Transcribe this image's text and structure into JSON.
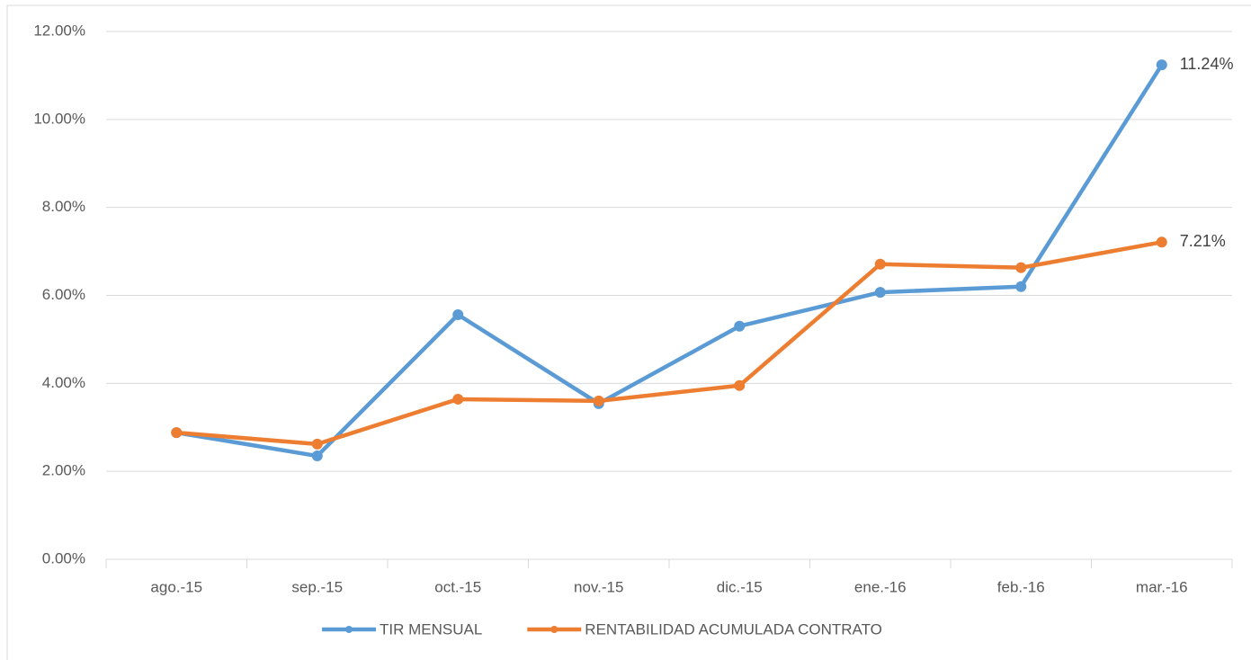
{
  "chart_data": {
    "type": "line",
    "categories": [
      "ago.-15",
      "sep.-15",
      "oct.-15",
      "nov.-15",
      "dic.-15",
      "ene.-16",
      "feb.-16",
      "mar.-16"
    ],
    "series": [
      {
        "name": "TIR MENSUAL",
        "color": "#5b9bd5",
        "values": [
          2.88,
          2.35,
          5.56,
          3.54,
          5.3,
          6.07,
          6.2,
          11.24
        ],
        "value_labels": [
          null,
          null,
          null,
          null,
          null,
          null,
          null,
          "11.24%"
        ]
      },
      {
        "name": "RENTABILIDAD ACUMULADA CONTRATO",
        "color": "#ed7d31",
        "values": [
          2.88,
          2.62,
          3.64,
          3.6,
          3.95,
          6.71,
          6.63,
          7.21
        ],
        "value_labels": [
          null,
          null,
          null,
          null,
          null,
          null,
          null,
          "7.21%"
        ]
      }
    ],
    "ylim": [
      0,
      12
    ],
    "yticks": [
      {
        "value": 0,
        "label": "0.00%"
      },
      {
        "value": 2,
        "label": "2.00%"
      },
      {
        "value": 4,
        "label": "4.00%"
      },
      {
        "value": 6,
        "label": "6.00%"
      },
      {
        "value": 8,
        "label": "8.00%"
      },
      {
        "value": 10,
        "label": "10.00%"
      },
      {
        "value": 12,
        "label": "12.00%"
      }
    ],
    "grid": true,
    "legend": "bottom"
  }
}
